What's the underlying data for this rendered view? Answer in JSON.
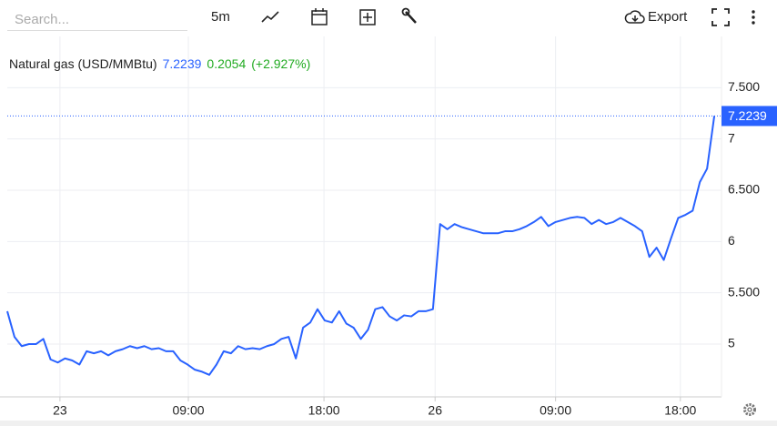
{
  "toolbar": {
    "search_placeholder": "Search...",
    "interval": "5m",
    "export": "Export"
  },
  "chart_data": {
    "type": "line",
    "last_price": 7.2239,
    "change": 0.2054,
    "change_percent": {
      "value": 2.927,
      "label": "(+2.927%)"
    },
    "xlim": [
      0,
      99
    ],
    "xticks": [
      {
        "value": 7.3,
        "label": "23"
      },
      {
        "value": 25.1,
        "label": "09:00"
      },
      {
        "value": 43.9,
        "label": "18:00"
      },
      {
        "value": 59.3,
        "label": "26"
      },
      {
        "value": 76.0,
        "label": "09:00"
      },
      {
        "value": 93.3,
        "label": "18:00"
      }
    ],
    "ylim": [
      4.485,
      8.0
    ],
    "yticks": [
      5,
      {
        "value": 5.5,
        "label": "5.500"
      },
      6,
      {
        "value": 6.5,
        "label": "6.500"
      },
      7,
      {
        "value": 7.5,
        "label": "7.500"
      }
    ],
    "grid": true,
    "series": [
      {
        "name": "Natural gas (USD/MMBtu)",
        "color": "#2962ff",
        "values": [
          5.32,
          5.07,
          4.98,
          5.0,
          5.0,
          5.05,
          4.85,
          4.82,
          4.86,
          4.84,
          4.8,
          4.93,
          4.91,
          4.93,
          4.89,
          4.93,
          4.95,
          4.98,
          4.96,
          4.98,
          4.95,
          4.96,
          4.93,
          4.93,
          4.84,
          4.8,
          4.75,
          4.73,
          4.7,
          4.8,
          4.93,
          4.91,
          4.98,
          4.95,
          4.96,
          4.95,
          4.98,
          5.0,
          5.05,
          5.07,
          4.86,
          5.16,
          5.21,
          5.34,
          5.23,
          5.21,
          5.32,
          5.2,
          5.16,
          5.05,
          5.14,
          5.34,
          5.36,
          5.27,
          5.23,
          5.28,
          5.27,
          5.32,
          5.32,
          5.34,
          6.17,
          6.12,
          6.17,
          6.14,
          6.12,
          6.1,
          6.08,
          6.08,
          6.08,
          6.1,
          6.1,
          6.12,
          6.15,
          6.19,
          6.24,
          6.15,
          6.19,
          6.21,
          6.23,
          6.24,
          6.23,
          6.17,
          6.21,
          6.17,
          6.19,
          6.23,
          6.19,
          6.15,
          6.1,
          5.85,
          5.94,
          5.82,
          6.03,
          6.23,
          6.26,
          6.3,
          6.58,
          6.71,
          7.2239
        ]
      }
    ]
  }
}
